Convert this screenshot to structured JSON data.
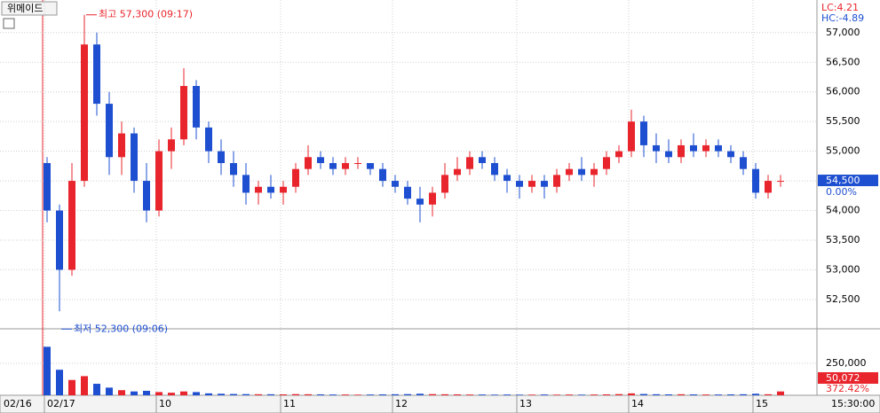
{
  "title": "위메이드",
  "chart_data": {
    "type": "candlestick",
    "categories": [
      "02/17",
      null,
      null,
      null,
      null,
      null,
      null,
      null,
      null,
      "10",
      null,
      null,
      null,
      null,
      null,
      null,
      null,
      null,
      null,
      "11",
      null,
      null,
      null,
      null,
      null,
      null,
      null,
      null,
      "12",
      null,
      null,
      null,
      null,
      null,
      null,
      null,
      null,
      null,
      "13",
      null,
      null,
      null,
      null,
      null,
      null,
      null,
      null,
      "14",
      null,
      null,
      null,
      null,
      null,
      null,
      null,
      null,
      null,
      "15",
      null,
      null
    ],
    "start_label": "02/16",
    "end_label": "15:30:00",
    "open": [
      54800,
      54000,
      53000,
      54500,
      56800,
      55800,
      54900,
      55300,
      54500,
      54000,
      55000,
      55200,
      56100,
      55400,
      55000,
      54800,
      54600,
      54300,
      54400,
      54300,
      54400,
      54700,
      54900,
      54800,
      54700,
      54800,
      54800,
      54700,
      54500,
      54400,
      54200,
      54100,
      54300,
      54600,
      54700,
      54900,
      54800,
      54600,
      54500,
      54400,
      54500,
      54400,
      54600,
      54700,
      54600,
      54700,
      54900,
      55000,
      55500,
      55100,
      55000,
      54900,
      55100,
      55000,
      55100,
      55000,
      54900,
      54700,
      54300,
      54500
    ],
    "high": [
      54900,
      54100,
      54800,
      57300,
      57000,
      56000,
      55500,
      55400,
      54800,
      55200,
      55400,
      56400,
      56200,
      55500,
      55200,
      55000,
      54800,
      54500,
      54600,
      54500,
      54800,
      55100,
      55000,
      54900,
      54900,
      54900,
      54800,
      54800,
      54600,
      54500,
      54400,
      54400,
      54800,
      54900,
      55000,
      55000,
      54900,
      54700,
      54600,
      54600,
      54600,
      54700,
      54800,
      54900,
      54800,
      55000,
      55100,
      55700,
      55600,
      55300,
      55200,
      55200,
      55300,
      55200,
      55200,
      55100,
      55000,
      54800,
      54600,
      54600
    ],
    "low": [
      53800,
      52300,
      52900,
      54400,
      55600,
      54600,
      54600,
      54300,
      53800,
      53900,
      54700,
      55100,
      55200,
      54800,
      54600,
      54400,
      54100,
      54100,
      54200,
      54100,
      54300,
      54600,
      54700,
      54600,
      54600,
      54700,
      54600,
      54400,
      54300,
      54100,
      53800,
      53900,
      54200,
      54500,
      54600,
      54700,
      54500,
      54300,
      54200,
      54300,
      54200,
      54300,
      54500,
      54500,
      54400,
      54600,
      54800,
      54900,
      54900,
      54800,
      54800,
      54800,
      54900,
      54900,
      54900,
      54800,
      54600,
      54200,
      54200,
      54400
    ],
    "close": [
      54000,
      53000,
      54500,
      56800,
      55800,
      54900,
      55300,
      54500,
      54000,
      55000,
      55200,
      56100,
      55400,
      55000,
      54800,
      54600,
      54300,
      54400,
      54300,
      54400,
      54700,
      54900,
      54800,
      54700,
      54800,
      54800,
      54700,
      54500,
      54400,
      54200,
      54100,
      54300,
      54600,
      54700,
      54900,
      54800,
      54600,
      54500,
      54400,
      54500,
      54400,
      54600,
      54700,
      54600,
      54700,
      54900,
      55000,
      55500,
      55100,
      55000,
      54900,
      55100,
      55000,
      55100,
      55000,
      54900,
      54700,
      54300,
      54500,
      54500
    ],
    "volume": [
      380000,
      200000,
      120000,
      150000,
      90000,
      60000,
      40000,
      30000,
      35000,
      25000,
      20000,
      30000,
      25000,
      15000,
      12000,
      10000,
      9000,
      8000,
      8000,
      7000,
      9000,
      8000,
      7000,
      6000,
      6000,
      5000,
      6000,
      7000,
      8000,
      9000,
      12000,
      9000,
      8000,
      7000,
      6000,
      6000,
      5000,
      6000,
      5000,
      5000,
      6000,
      5000,
      6000,
      5000,
      6000,
      7000,
      9000,
      15000,
      10000,
      8000,
      7000,
      8000,
      7000,
      6000,
      6000,
      7000,
      8000,
      12000,
      8000,
      30000
    ],
    "up_color": "#e8252c",
    "down_color": "#1e4fd0",
    "ylim": [
      52020,
      57550
    ],
    "yticks": [
      {
        "value": 52500,
        "label": "52,500"
      },
      {
        "value": 53000,
        "label": "53,000"
      },
      {
        "value": 53500,
        "label": "53,500"
      },
      {
        "value": 54000,
        "label": "54,000"
      },
      {
        "value": 54500,
        "label": "54,500"
      },
      {
        "value": 55000,
        "label": "55,000"
      },
      {
        "value": 55500,
        "label": "55,500"
      },
      {
        "value": 56000,
        "label": "56,000"
      },
      {
        "value": 56500,
        "label": "56,500"
      },
      {
        "value": 57000,
        "label": "57,000"
      }
    ],
    "vol_ylim": [
      0,
      514000
    ],
    "vol_yticks": [
      {
        "value": 250000,
        "label": "250,000"
      }
    ],
    "high_note": "최고 57,300 (09:17)",
    "low_note": "최저 52,300 (09:06)",
    "lc": "LC:4.21",
    "hc": "HC:-4.89",
    "last_price_label": "54,500",
    "change_label": "0.00%",
    "last_volume_label": "50,072",
    "volume_ratio_label": "372.42%",
    "grid": true
  }
}
